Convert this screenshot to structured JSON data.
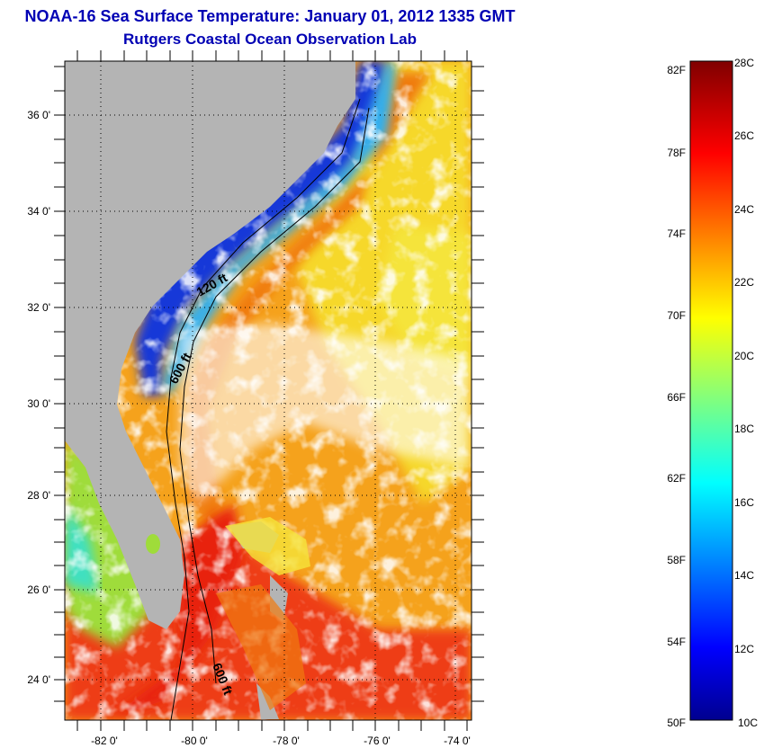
{
  "header": {
    "title": "NOAA-16 Sea Surface Temperature:  January 01, 2012 1335 GMT",
    "subtitle": "Rutgers Coastal Ocean Observation Lab"
  },
  "map": {
    "lat_labels": [
      "36 0'",
      "34 0'",
      "32 0'",
      "30 0'",
      "28 0'",
      "26 0'",
      "24 0'"
    ],
    "lon_labels": [
      "-82 0'",
      "-80 0'",
      "-78 0'",
      "-76 0'",
      "-74 0'"
    ],
    "contour_labels": [
      "120 ft",
      "600 ft",
      "600 ft"
    ],
    "colors": {
      "land": "#b4b4b4",
      "cloud": "#ffffff",
      "frame": "#000000"
    }
  },
  "colorbar": {
    "fahrenheit_labels": [
      "82F",
      "78F",
      "74F",
      "70F",
      "66F",
      "62F",
      "58F",
      "54F",
      "50F"
    ],
    "celsius_labels": [
      "28C",
      "26C",
      "24C",
      "22C",
      "20C",
      "18C",
      "16C",
      "14C",
      "12C",
      "10C"
    ],
    "range_c": [
      10,
      28
    ],
    "colormap": "jet"
  }
}
